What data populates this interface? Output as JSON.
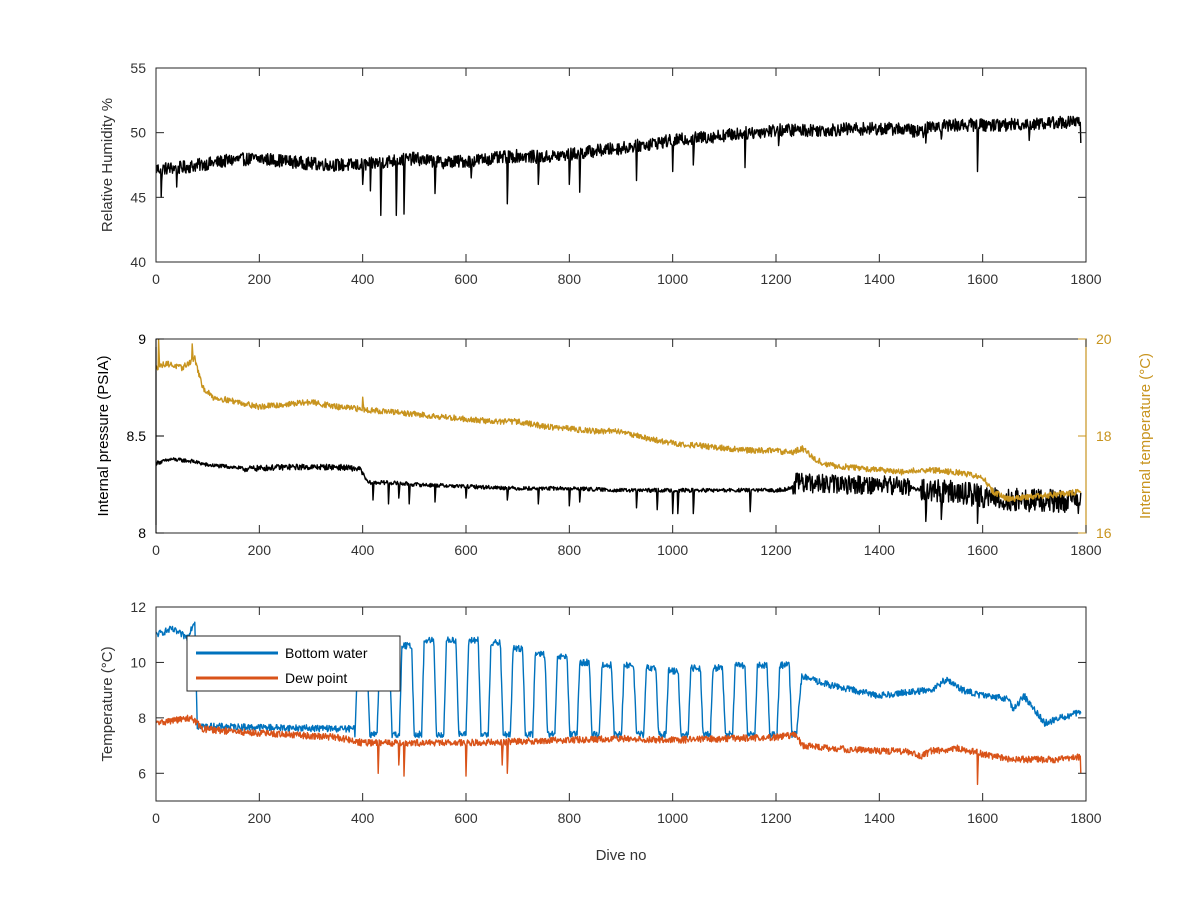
{
  "chart_data": [
    {
      "type": "line",
      "x_range": [
        0,
        1800
      ],
      "ylim": [
        40,
        55
      ],
      "ylabel": "Relative Humidity %",
      "xticks": [
        0,
        200,
        400,
        600,
        800,
        1000,
        1200,
        1400,
        1600,
        1800
      ],
      "yticks": [
        40,
        45,
        50,
        55
      ],
      "grid": false,
      "series": [
        {
          "color": "#000000",
          "trend": [
            [
              0,
              47.2
            ],
            [
              50,
              47.3
            ],
            [
              100,
              47.6
            ],
            [
              150,
              47.9
            ],
            [
              200,
              48.0
            ],
            [
              250,
              47.8
            ],
            [
              300,
              47.6
            ],
            [
              350,
              47.5
            ],
            [
              400,
              47.5
            ],
            [
              450,
              47.8
            ],
            [
              500,
              48.0
            ],
            [
              550,
              47.7
            ],
            [
              600,
              47.8
            ],
            [
              650,
              48.0
            ],
            [
              700,
              48.2
            ],
            [
              750,
              48.1
            ],
            [
              800,
              48.3
            ],
            [
              850,
              48.6
            ],
            [
              900,
              48.8
            ],
            [
              950,
              49.1
            ],
            [
              1000,
              49.4
            ],
            [
              1050,
              49.6
            ],
            [
              1100,
              49.8
            ],
            [
              1150,
              50.0
            ],
            [
              1200,
              50.2
            ],
            [
              1250,
              50.2
            ],
            [
              1300,
              50.2
            ],
            [
              1350,
              50.3
            ],
            [
              1400,
              50.3
            ],
            [
              1450,
              50.3
            ],
            [
              1480,
              50.0
            ],
            [
              1500,
              50.5
            ],
            [
              1550,
              50.6
            ],
            [
              1600,
              50.6
            ],
            [
              1650,
              50.6
            ],
            [
              1700,
              50.7
            ],
            [
              1750,
              50.8
            ],
            [
              1790,
              50.8
            ]
          ],
          "dips": [
            [
              10,
              45.0
            ],
            [
              40,
              45.8
            ],
            [
              400,
              46.0
            ],
            [
              415,
              45.5
            ],
            [
              435,
              43.6
            ],
            [
              465,
              43.6
            ],
            [
              480,
              43.7
            ],
            [
              540,
              45.3
            ],
            [
              610,
              46.5
            ],
            [
              680,
              44.5
            ],
            [
              740,
              46.0
            ],
            [
              800,
              46.0
            ],
            [
              820,
              45.4
            ],
            [
              930,
              46.3
            ],
            [
              1000,
              47.0
            ],
            [
              1040,
              47.5
            ],
            [
              1140,
              47.3
            ],
            [
              1205,
              49.0
            ],
            [
              1490,
              49.2
            ],
            [
              1520,
              49.5
            ],
            [
              1590,
              47.0
            ],
            [
              1690,
              49.4
            ],
            [
              1790,
              49.2
            ]
          ],
          "noise": 0.5
        }
      ]
    },
    {
      "type": "line",
      "x_range": [
        0,
        1800
      ],
      "ylim": [
        8,
        9
      ],
      "ylim_right": [
        16,
        20
      ],
      "ylabel": "Internal pressure (PSIA)",
      "ylabel_right": "Internal temperature (°C)",
      "xticks": [
        0,
        200,
        400,
        600,
        800,
        1000,
        1200,
        1400,
        1600,
        1800
      ],
      "yticks": [
        "8",
        "8.5",
        "9"
      ],
      "yticks_right": [
        "16",
        "18",
        "20"
      ],
      "grid": false,
      "series": [
        {
          "axis": "left",
          "color": "#000000",
          "trend": [
            [
              0,
              8.36
            ],
            [
              30,
              8.38
            ],
            [
              70,
              8.37
            ],
            [
              100,
              8.35
            ],
            [
              150,
              8.34
            ],
            [
              170,
              8.33
            ],
            [
              250,
              8.34
            ],
            [
              300,
              8.34
            ],
            [
              350,
              8.34
            ],
            [
              395,
              8.33
            ],
            [
              410,
              8.26
            ],
            [
              450,
              8.26
            ],
            [
              500,
              8.25
            ],
            [
              600,
              8.24
            ],
            [
              700,
              8.23
            ],
            [
              800,
              8.23
            ],
            [
              900,
              8.22
            ],
            [
              1000,
              8.22
            ],
            [
              1100,
              8.22
            ],
            [
              1200,
              8.22
            ],
            [
              1230,
              8.23
            ],
            [
              1240,
              8.26
            ],
            [
              1300,
              8.25
            ],
            [
              1400,
              8.25
            ],
            [
              1455,
              8.24
            ],
            [
              1480,
              8.22
            ],
            [
              1500,
              8.22
            ],
            [
              1550,
              8.21
            ],
            [
              1600,
              8.19
            ],
            [
              1650,
              8.17
            ],
            [
              1700,
              8.17
            ],
            [
              1790,
              8.16
            ]
          ],
          "dips": [
            [
              420,
              8.17
            ],
            [
              450,
              8.15
            ],
            [
              470,
              8.18
            ],
            [
              490,
              8.15
            ],
            [
              540,
              8.16
            ],
            [
              600,
              8.18
            ],
            [
              680,
              8.17
            ],
            [
              740,
              8.15
            ],
            [
              800,
              8.14
            ],
            [
              820,
              8.16
            ],
            [
              930,
              8.13
            ],
            [
              970,
              8.12
            ],
            [
              1000,
              8.1
            ],
            [
              1010,
              8.1
            ],
            [
              1040,
              8.1
            ],
            [
              1150,
              8.11
            ],
            [
              1490,
              8.06
            ],
            [
              1520,
              8.07
            ],
            [
              1590,
              8.05
            ],
            [
              1690,
              8.11
            ]
          ],
          "noise": 0.01,
          "dense_noise": [
            [
              1230,
              1460,
              0.05
            ],
            [
              1480,
              1800,
              0.06
            ],
            [
              170,
              395,
              0.015
            ]
          ]
        },
        {
          "axis": "right",
          "color": "#C8941E",
          "trend": [
            [
              0,
              19.4
            ],
            [
              20,
              19.5
            ],
            [
              50,
              19.4
            ],
            [
              75,
              19.6
            ],
            [
              90,
              19.0
            ],
            [
              110,
              18.8
            ],
            [
              160,
              18.7
            ],
            [
              200,
              18.6
            ],
            [
              250,
              18.65
            ],
            [
              300,
              18.7
            ],
            [
              350,
              18.6
            ],
            [
              400,
              18.55
            ],
            [
              450,
              18.5
            ],
            [
              500,
              18.45
            ],
            [
              550,
              18.4
            ],
            [
              600,
              18.35
            ],
            [
              650,
              18.3
            ],
            [
              700,
              18.3
            ],
            [
              750,
              18.2
            ],
            [
              800,
              18.15
            ],
            [
              850,
              18.1
            ],
            [
              900,
              18.1
            ],
            [
              950,
              17.95
            ],
            [
              1000,
              17.85
            ],
            [
              1050,
              17.8
            ],
            [
              1100,
              17.75
            ],
            [
              1150,
              17.7
            ],
            [
              1200,
              17.7
            ],
            [
              1230,
              17.65
            ],
            [
              1250,
              17.75
            ],
            [
              1280,
              17.5
            ],
            [
              1300,
              17.4
            ],
            [
              1350,
              17.35
            ],
            [
              1400,
              17.3
            ],
            [
              1450,
              17.25
            ],
            [
              1470,
              17.3
            ],
            [
              1500,
              17.3
            ],
            [
              1550,
              17.25
            ],
            [
              1600,
              17.15
            ],
            [
              1620,
              16.85
            ],
            [
              1650,
              16.7
            ],
            [
              1700,
              16.75
            ],
            [
              1750,
              16.8
            ],
            [
              1790,
              16.85
            ]
          ],
          "spikes": [
            [
              5,
              20.0
            ],
            [
              70,
              19.9
            ],
            [
              400,
              18.8
            ]
          ],
          "noise": 0.06
        }
      ]
    },
    {
      "type": "line",
      "x_range": [
        0,
        1800
      ],
      "ylim": [
        5,
        12
      ],
      "xlabel": "Dive no",
      "ylabel": "Temperature (°C)",
      "xticks": [
        0,
        200,
        400,
        600,
        800,
        1000,
        1200,
        1400,
        1600,
        1800
      ],
      "yticks": [
        6,
        8,
        10,
        12
      ],
      "grid": false,
      "legend": "top-left",
      "series": [
        {
          "name": "Bottom water",
          "color": "#0072BD",
          "trend": [
            [
              0,
              11.0
            ],
            [
              30,
              11.2
            ],
            [
              60,
              10.9
            ],
            [
              75,
              11.5
            ],
            [
              80,
              7.7
            ],
            [
              380,
              7.6
            ],
            [
              1240,
              7.6
            ],
            [
              1250,
              9.5
            ],
            [
              1300,
              9.2
            ],
            [
              1350,
              9.0
            ],
            [
              1400,
              8.8
            ],
            [
              1440,
              8.9
            ],
            [
              1500,
              9.0
            ],
            [
              1530,
              9.4
            ],
            [
              1560,
              9.0
            ],
            [
              1600,
              8.8
            ],
            [
              1650,
              8.7
            ],
            [
              1660,
              8.3
            ],
            [
              1680,
              8.8
            ],
            [
              1700,
              8.3
            ],
            [
              1720,
              7.8
            ],
            [
              1750,
              8.0
            ],
            [
              1790,
              8.2
            ]
          ],
          "oscillation": {
            "start": 385,
            "end": 1240,
            "period": 43,
            "high": [
              10.0,
              10.4,
              10.6,
              10.8,
              10.8,
              10.8,
              10.7,
              10.5,
              10.3,
              10.2,
              10.0,
              9.9,
              9.9,
              9.8,
              9.7,
              9.8,
              9.8,
              9.9,
              9.9,
              9.9
            ],
            "low": 7.4
          },
          "noise": 0.12
        },
        {
          "name": "Dew point",
          "color": "#D95319",
          "trend": [
            [
              0,
              7.8
            ],
            [
              30,
              7.9
            ],
            [
              70,
              8.0
            ],
            [
              90,
              7.6
            ],
            [
              150,
              7.5
            ],
            [
              200,
              7.45
            ],
            [
              250,
              7.4
            ],
            [
              300,
              7.35
            ],
            [
              350,
              7.3
            ],
            [
              400,
              7.1
            ],
            [
              450,
              7.1
            ],
            [
              500,
              7.1
            ],
            [
              600,
              7.1
            ],
            [
              700,
              7.15
            ],
            [
              800,
              7.2
            ],
            [
              900,
              7.25
            ],
            [
              1000,
              7.2
            ],
            [
              1100,
              7.25
            ],
            [
              1200,
              7.3
            ],
            [
              1240,
              7.4
            ],
            [
              1250,
              7.0
            ],
            [
              1300,
              6.9
            ],
            [
              1400,
              6.8
            ],
            [
              1450,
              6.8
            ],
            [
              1480,
              6.6
            ],
            [
              1500,
              6.8
            ],
            [
              1550,
              6.9
            ],
            [
              1600,
              6.7
            ],
            [
              1650,
              6.5
            ],
            [
              1700,
              6.5
            ],
            [
              1750,
              6.5
            ],
            [
              1790,
              6.6
            ]
          ],
          "dips": [
            [
              430,
              6.0
            ],
            [
              470,
              6.3
            ],
            [
              480,
              5.9
            ],
            [
              600,
              5.9
            ],
            [
              670,
              6.3
            ],
            [
              680,
              6.0
            ],
            [
              1590,
              5.6
            ],
            [
              1790,
              6.0
            ]
          ],
          "noise": 0.12
        }
      ]
    }
  ]
}
